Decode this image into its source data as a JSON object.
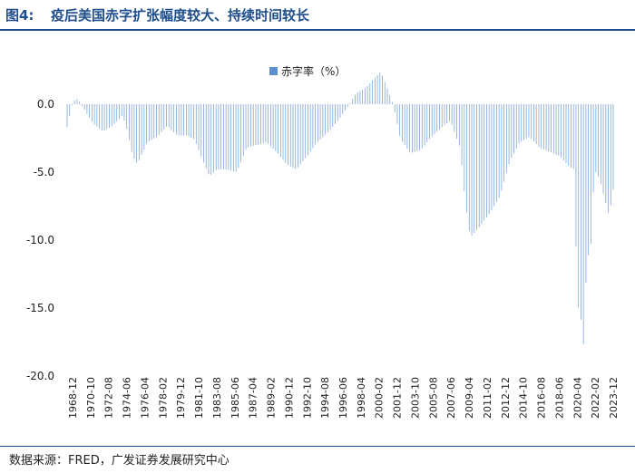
{
  "header": {
    "figure_label": "图4:",
    "title": "疫后美国赤字扩张幅度较大、持续时间较长"
  },
  "footer": {
    "source": "数据来源：FRED，广发证券发展研究中心"
  },
  "colors": {
    "bar": "#7ea6d6",
    "legend_swatch": "#5b8fd0",
    "axis_text": "#222222",
    "accent": "#1f4e8c"
  },
  "chart_data": {
    "type": "bar",
    "legend": {
      "label": "赤字率（%）",
      "placement": "top-center"
    },
    "ylim": [
      -20,
      3
    ],
    "yticks": [
      0,
      -5,
      -10,
      -15,
      -20
    ],
    "ytick_labels": [
      "0.0",
      "-5.0",
      "-10.0",
      "-15.0",
      "-20.0"
    ],
    "xlim": [
      1968.92,
      2023.92
    ],
    "xtick_labels": [
      "1968-12",
      "1970-10",
      "1972-08",
      "1974-06",
      "1976-04",
      "1978-02",
      "1979-12",
      "1981-10",
      "1983-08",
      "1985-06",
      "1987-04",
      "1989-02",
      "1990-12",
      "1992-10",
      "1994-08",
      "1996-06",
      "1998-04",
      "2000-02",
      "2001-12",
      "2003-10",
      "2005-08",
      "2007-06",
      "2009-04",
      "2011-02",
      "2012-12",
      "2014-10",
      "2016-08",
      "2018-06",
      "2020-04",
      "2022-02",
      "2023-12"
    ],
    "series_keypoints": [
      [
        1968.92,
        -1.7
      ],
      [
        1969.5,
        0.2
      ],
      [
        1970.0,
        0.4
      ],
      [
        1970.5,
        -0.2
      ],
      [
        1971.5,
        -1.4
      ],
      [
        1972.5,
        -2.0
      ],
      [
        1973.5,
        -1.6
      ],
      [
        1974.5,
        -0.8
      ],
      [
        1975.0,
        -2.0
      ],
      [
        1975.5,
        -3.8
      ],
      [
        1976.0,
        -4.4
      ],
      [
        1977.0,
        -2.8
      ],
      [
        1978.0,
        -2.4
      ],
      [
        1979.0,
        -1.6
      ],
      [
        1980.0,
        -2.3
      ],
      [
        1981.0,
        -2.3
      ],
      [
        1981.75,
        -2.6
      ],
      [
        1982.5,
        -4.0
      ],
      [
        1983.25,
        -5.3
      ],
      [
        1984.0,
        -4.8
      ],
      [
        1985.0,
        -4.8
      ],
      [
        1986.0,
        -5.0
      ],
      [
        1987.0,
        -3.2
      ],
      [
        1988.0,
        -3.0
      ],
      [
        1989.0,
        -2.8
      ],
      [
        1990.0,
        -3.5
      ],
      [
        1991.0,
        -4.4
      ],
      [
        1992.0,
        -4.8
      ],
      [
        1993.0,
        -3.9
      ],
      [
        1994.0,
        -2.9
      ],
      [
        1995.0,
        -2.2
      ],
      [
        1996.0,
        -1.4
      ],
      [
        1997.0,
        -0.4
      ],
      [
        1998.0,
        0.8
      ],
      [
        1999.0,
        1.2
      ],
      [
        2000.0,
        2.0
      ],
      [
        2000.5,
        2.4
      ],
      [
        2001.0,
        1.5
      ],
      [
        2001.75,
        0.0
      ],
      [
        2002.5,
        -2.6
      ],
      [
        2003.5,
        -3.6
      ],
      [
        2004.5,
        -3.4
      ],
      [
        2005.5,
        -2.5
      ],
      [
        2006.5,
        -1.8
      ],
      [
        2007.5,
        -1.2
      ],
      [
        2008.5,
        -3.2
      ],
      [
        2009.0,
        -7.0
      ],
      [
        2009.5,
        -9.8
      ],
      [
        2010.5,
        -9.0
      ],
      [
        2011.5,
        -8.0
      ],
      [
        2012.5,
        -6.8
      ],
      [
        2013.5,
        -4.2
      ],
      [
        2014.5,
        -2.8
      ],
      [
        2015.5,
        -2.4
      ],
      [
        2016.5,
        -3.2
      ],
      [
        2017.5,
        -3.5
      ],
      [
        2018.5,
        -3.8
      ],
      [
        2019.5,
        -4.6
      ],
      [
        2020.0,
        -4.8
      ],
      [
        2020.3,
        -14.8
      ],
      [
        2020.6,
        -15.2
      ],
      [
        2020.9,
        -18.0
      ],
      [
        2021.25,
        -11.7
      ],
      [
        2021.75,
        -10.0
      ],
      [
        2022.0,
        -4.8
      ],
      [
        2022.5,
        -5.4
      ],
      [
        2023.0,
        -6.8
      ],
      [
        2023.5,
        -8.2
      ],
      [
        2023.92,
        -6.3
      ]
    ]
  }
}
